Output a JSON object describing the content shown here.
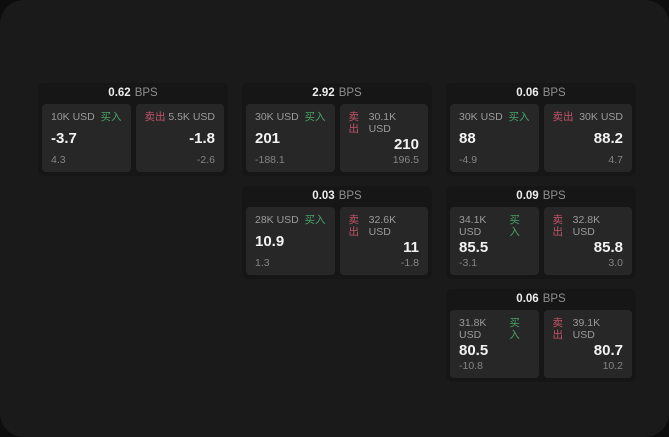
{
  "labels": {
    "unit": "BPS",
    "buy": "买入",
    "sell": "卖出"
  },
  "colors": {
    "buy": "#46a368",
    "sell": "#c2546a",
    "surface": "#1a1a1a",
    "backdrop": "#0d0d0d",
    "card": "#161616",
    "panel": "#272727"
  },
  "cards": [
    {
      "bps": "0.62",
      "buy": {
        "amount": "10K USD",
        "value": "-3.7",
        "sub": "4.3"
      },
      "sell": {
        "amount": "5.5K USD",
        "value": "-1.8",
        "sub": "-2.6"
      }
    },
    {
      "bps": "2.92",
      "buy": {
        "amount": "30K USD",
        "value": "201",
        "sub": "-188.1"
      },
      "sell": {
        "amount": "30.1K USD",
        "value": "210",
        "sub": "196.5"
      }
    },
    {
      "bps": "0.06",
      "buy": {
        "amount": "30K USD",
        "value": "88",
        "sub": "-4.9"
      },
      "sell": {
        "amount": "30K USD",
        "value": "88.2",
        "sub": "4.7"
      }
    },
    {
      "bps": "0.03",
      "buy": {
        "amount": "28K USD",
        "value": "10.9",
        "sub": "1.3"
      },
      "sell": {
        "amount": "32.6K USD",
        "value": "11",
        "sub": "-1.8"
      }
    },
    {
      "bps": "0.09",
      "buy": {
        "amount": "34.1K USD",
        "value": "85.5",
        "sub": "-3.1"
      },
      "sell": {
        "amount": "32.8K USD",
        "value": "85.8",
        "sub": "3.0"
      }
    },
    {
      "bps": "0.06",
      "buy": {
        "amount": "31.8K USD",
        "value": "80.5",
        "sub": "-10.8"
      },
      "sell": {
        "amount": "39.1K USD",
        "value": "80.7",
        "sub": "10.2"
      }
    }
  ]
}
